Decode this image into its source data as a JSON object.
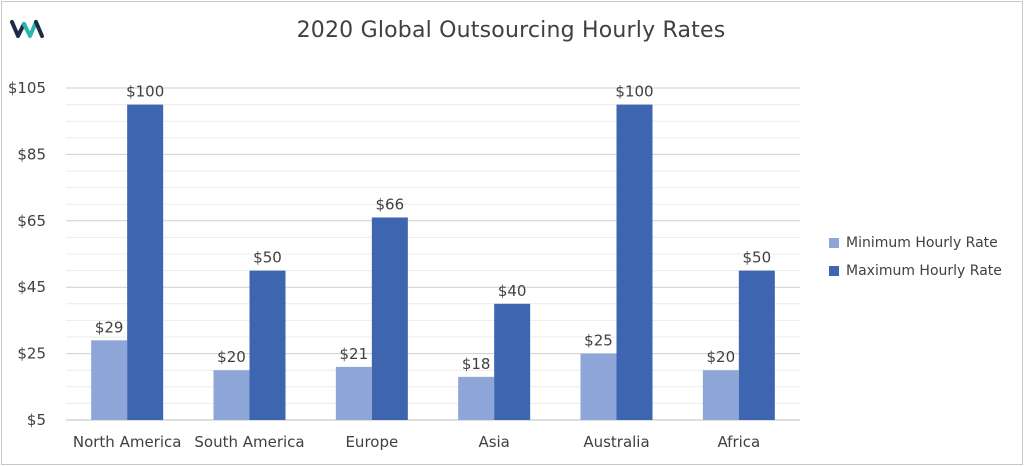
{
  "logo": {
    "icon": "wa-logo-icon",
    "colors": [
      "#1f2a44",
      "#2bb5b0"
    ]
  },
  "chart_data": {
    "type": "bar",
    "title": "2020 Global Outsourcing Hourly Rates",
    "xlabel": "",
    "ylabel": "",
    "categories": [
      "North America",
      "South America",
      "Europe",
      "Asia",
      "Australia",
      "Africa"
    ],
    "series": [
      {
        "name": "Minimum Hourly Rate",
        "values": [
          29,
          20,
          21,
          18,
          25,
          20
        ],
        "labels": [
          "$29",
          "$20",
          "$21",
          "$18",
          "$25",
          "$20"
        ],
        "color": "#8ea5d8"
      },
      {
        "name": "Maximum Hourly Rate",
        "values": [
          100,
          50,
          66,
          40,
          100,
          50
        ],
        "labels": [
          "$100",
          "$50",
          "$66",
          "$40",
          "$100",
          "$50"
        ],
        "color": "#3d65b0"
      }
    ],
    "ylim": [
      5,
      105
    ],
    "yticks": [
      5,
      25,
      45,
      65,
      85,
      105
    ],
    "ytick_labels": [
      "$5",
      "$25",
      "$45",
      "$65",
      "$85",
      "$105"
    ],
    "minor_gridline_step": 5,
    "grid": true,
    "legend_position": "right"
  }
}
